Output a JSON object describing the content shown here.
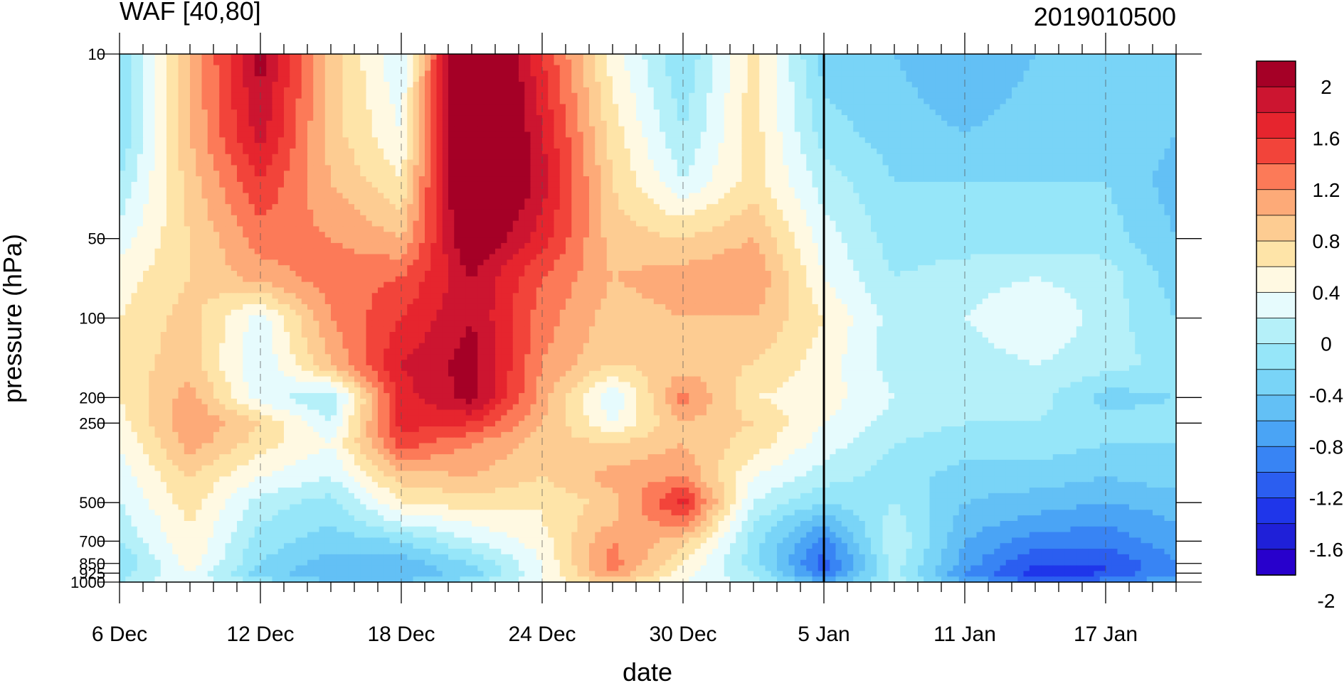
{
  "chart_data": {
    "type": "heatmap",
    "title": "WAF [40,80]",
    "subtitle": "2019010500",
    "xlabel": "date",
    "ylabel": "pressure (hPa)",
    "x_tick_labels": [
      "6 Dec",
      "12 Dec",
      "18 Dec",
      "24 Dec",
      "30 Dec",
      "5 Jan",
      "11 Jan",
      "17 Jan"
    ],
    "x_tick_days": [
      0,
      6,
      12,
      18,
      24,
      30,
      36,
      42
    ],
    "x_range_days": [
      0,
      45
    ],
    "marked_date_day": 30,
    "y_scale": "log",
    "y_reversed": true,
    "ylim": [
      1000,
      10
    ],
    "y_tick_labels": [
      "10",
      "50",
      "100",
      "200",
      "250",
      "500",
      "700",
      "850",
      "925",
      "1000"
    ],
    "y_tick_values": [
      10,
      50,
      100,
      200,
      250,
      500,
      700,
      850,
      925,
      1000
    ],
    "colorbar_labels": [
      "2",
      "1.6",
      "1.2",
      "0.8",
      "0.4",
      "0",
      "-0.4",
      "-0.8",
      "-1.2",
      "-1.6",
      "-2"
    ],
    "colorbar_label_values": [
      2,
      1.6,
      1.2,
      0.8,
      0.4,
      0,
      -0.4,
      -0.8,
      -1.2,
      -1.6,
      -2
    ],
    "colorbar_levels": [
      -2.2,
      -2.0,
      -1.8,
      -1.6,
      -1.4,
      -1.2,
      -1.0,
      -0.8,
      -0.6,
      -0.4,
      -0.2,
      0.0,
      0.2,
      0.4,
      0.6,
      0.8,
      1.0,
      1.2,
      1.4,
      1.6,
      1.8,
      2.0,
      2.2
    ],
    "colorbar_colors": [
      "#a50026",
      "#cc1530",
      "#e6252e",
      "#f2443a",
      "#fc7a58",
      "#fdaa78",
      "#fdcc92",
      "#fee4a8",
      "#fff9e2",
      "#e6fbfd",
      "#b5f0f9",
      "#96e6f9",
      "#79d4f7",
      "#63c0f5",
      "#4aa4f5",
      "#3884f4",
      "#2b5ef0",
      "#1f36ea",
      "#1f20d8",
      "#2800cc"
    ],
    "pressure_levels": [
      10,
      20,
      30,
      50,
      70,
      100,
      150,
      200,
      250,
      300,
      400,
      500,
      600,
      700,
      850,
      925,
      1000
    ],
    "days": [
      0,
      3,
      6,
      9,
      12,
      15,
      18,
      21,
      24,
      27,
      30,
      33,
      36,
      39,
      42,
      45
    ],
    "values": [
      [
        -0.6,
        0.6,
        1.7,
        0.5,
        -0.2,
        2.4,
        1.2,
        0.1,
        -0.6,
        0.3,
        -0.7,
        -0.8,
        -1.0,
        -0.8,
        -0.6,
        -0.7
      ],
      [
        -0.6,
        0.6,
        1.5,
        0.5,
        0.0,
        2.4,
        1.4,
        0.3,
        -0.4,
        0.3,
        -0.5,
        -0.7,
        -0.8,
        -0.7,
        -0.6,
        -0.8
      ],
      [
        -0.4,
        0.5,
        1.2,
        0.6,
        0.2,
        2.3,
        1.5,
        0.4,
        -0.2,
        0.3,
        -0.3,
        -0.6,
        -0.6,
        -0.6,
        -0.6,
        -0.9
      ],
      [
        -0.1,
        0.4,
        0.9,
        0.8,
        0.6,
        1.9,
        1.3,
        0.5,
        0.4,
        0.6,
        -0.1,
        -0.5,
        -0.5,
        -0.5,
        -0.5,
        -0.8
      ],
      [
        0.1,
        0.4,
        0.7,
        0.9,
        1.0,
        1.6,
        1.0,
        0.6,
        0.7,
        0.8,
        0.0,
        -0.4,
        -0.3,
        -0.2,
        -0.3,
        -0.7
      ],
      [
        0.2,
        0.5,
        -0.1,
        0.8,
        1.2,
        1.6,
        0.9,
        0.5,
        0.6,
        0.6,
        0.2,
        -0.3,
        -0.2,
        0.0,
        -0.3,
        -0.6
      ],
      [
        0.3,
        0.5,
        -0.2,
        0.6,
        1.4,
        1.7,
        0.8,
        0.4,
        0.5,
        0.4,
        0.1,
        -0.3,
        -0.3,
        -0.2,
        -0.3,
        -0.5
      ],
      [
        0.2,
        0.7,
        -0.1,
        -0.4,
        1.3,
        1.7,
        0.7,
        -0.2,
        0.9,
        0.2,
        0.1,
        -0.2,
        -0.4,
        -0.3,
        -0.7,
        -0.6
      ],
      [
        0.1,
        0.8,
        0.4,
        -0.2,
        1.3,
        1.2,
        0.6,
        0.0,
        0.6,
        0.4,
        0.0,
        -0.3,
        -0.4,
        -0.4,
        -0.5,
        -0.5
      ],
      [
        0.0,
        0.7,
        0.3,
        0.0,
        1.1,
        0.8,
        0.5,
        0.4,
        0.6,
        0.3,
        -0.1,
        -0.4,
        -0.5,
        -0.5,
        -0.6,
        -0.6
      ],
      [
        -0.1,
        0.4,
        0.0,
        -0.2,
        0.5,
        0.6,
        0.4,
        0.7,
        0.8,
        0.0,
        -0.3,
        -0.5,
        -0.7,
        -0.7,
        -0.8,
        -0.7
      ],
      [
        -0.2,
        0.3,
        -0.3,
        -0.5,
        0.2,
        0.3,
        0.2,
        0.5,
        1.3,
        -0.2,
        -0.6,
        -0.4,
        -0.8,
        -0.9,
        -1.0,
        -0.9
      ],
      [
        -0.3,
        0.2,
        -0.4,
        -0.6,
        -0.2,
        0.0,
        0.2,
        0.6,
        0.9,
        -0.4,
        -1.0,
        -0.3,
        -0.9,
        -1.1,
        -1.2,
        -1.0
      ],
      [
        -0.4,
        0.2,
        -0.5,
        -0.7,
        -0.6,
        -0.2,
        0.1,
        0.8,
        0.5,
        -0.5,
        -1.3,
        -0.2,
        -1.0,
        -1.3,
        -1.3,
        -1.1
      ],
      [
        -0.6,
        0.1,
        -0.6,
        -0.9,
        -0.9,
        -0.6,
        0.0,
        0.9,
        0.2,
        -0.5,
        -1.5,
        -0.3,
        -1.1,
        -1.6,
        -1.6,
        -1.2
      ],
      [
        -0.5,
        0.0,
        -0.7,
        -1.0,
        -1.0,
        -0.7,
        0.0,
        0.8,
        0.1,
        -0.4,
        -1.4,
        -0.3,
        -1.2,
        -1.7,
        -1.6,
        -1.2
      ],
      [
        -0.4,
        0.0,
        -0.5,
        -0.8,
        -0.8,
        -0.5,
        0.0,
        0.5,
        0.0,
        -0.3,
        -1.0,
        -0.3,
        -1.0,
        -1.4,
        -1.3,
        -1.0
      ]
    ]
  }
}
